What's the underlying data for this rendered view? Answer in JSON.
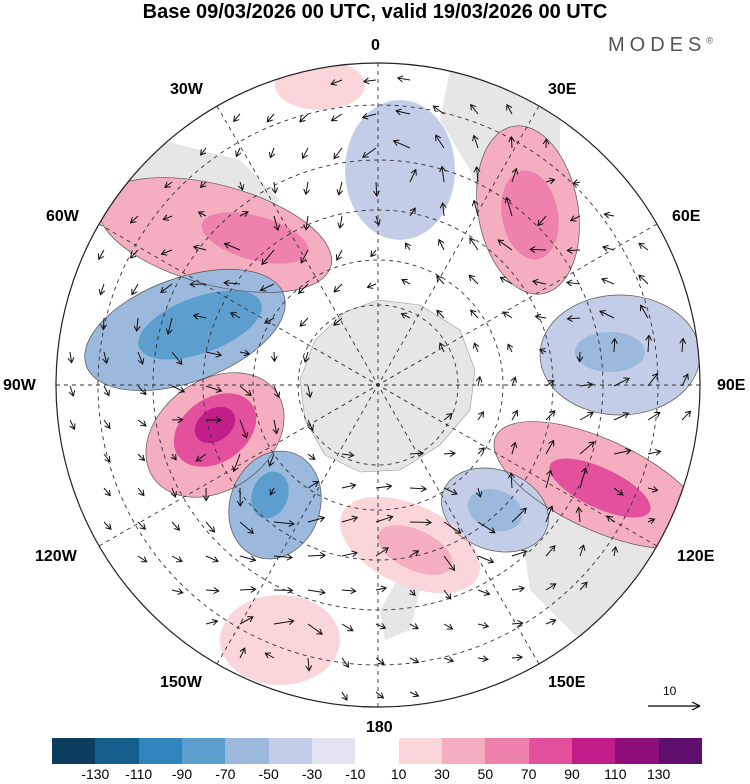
{
  "header": {
    "title": "Base 09/03/2026 00 UTC, valid 19/03/2026 00 UTC",
    "brand": "MODES",
    "brand_mark": "®"
  },
  "map": {
    "projection": "south-polar-stereographic",
    "longitude_labels": {
      "top": "0",
      "bottom": "180",
      "left": "90W",
      "right": "90E",
      "w30": "30W",
      "w60": "60W",
      "w120": "120W",
      "w150": "150W",
      "e30": "30E",
      "e60": "60E",
      "e120": "120E",
      "e150": "150E"
    },
    "reference_vector": "10"
  },
  "colorbar": {
    "colors": [
      "#0b3d5e",
      "#155f8e",
      "#2f86bf",
      "#5c9fce",
      "#9bb8dd",
      "#c3cde8",
      "#e3e3f2",
      "#ffffff",
      "#fad5d9",
      "#f5adc0",
      "#ef82ad",
      "#e3509c",
      "#c21e8a",
      "#8e0f7a",
      "#5e0f6e"
    ],
    "ticks": [
      "-130",
      "-110",
      "-90",
      "-70",
      "-50",
      "-30",
      "-10",
      "10",
      "30",
      "50",
      "70",
      "90",
      "110",
      "130"
    ]
  },
  "anomalies": [
    {
      "name": "anomaly-60w-pink-1",
      "color": "#f5adc0"
    },
    {
      "name": "anomaly-60w-pink-2",
      "color": "#ef82ad"
    },
    {
      "name": "anomaly-90w-blue-1",
      "color": "#9bb8dd"
    },
    {
      "name": "anomaly-90w-blue-2",
      "color": "#5c9fce"
    },
    {
      "name": "anomaly-105w-pink-1",
      "color": "#f5adc0"
    },
    {
      "name": "anomaly-105w-pink-2",
      "color": "#e3509c"
    },
    {
      "name": "anomaly-105w-pink-3",
      "color": "#c21e8a"
    },
    {
      "name": "anomaly-30e-pink-1",
      "color": "#f5adc0"
    },
    {
      "name": "anomaly-30e-pink-2",
      "color": "#ef82ad"
    },
    {
      "name": "anomaly-80e-blue-1",
      "color": "#c3cde8"
    },
    {
      "name": "anomaly-80e-blue-2",
      "color": "#9bb8dd"
    },
    {
      "name": "anomaly-115e-pink-1",
      "color": "#f5adc0"
    },
    {
      "name": "anomaly-115e-pink-2",
      "color": "#e3509c"
    },
    {
      "name": "anomaly-140w-blue-1",
      "color": "#9bb8dd"
    },
    {
      "name": "anomaly-140w-blue-2",
      "color": "#5c9fce"
    },
    {
      "name": "anomaly-150e-blue-1",
      "color": "#c3cde8"
    },
    {
      "name": "anomaly-150e-blue-2",
      "color": "#9bb8dd"
    },
    {
      "name": "anomaly-180-pink-1",
      "color": "#fad5d9"
    },
    {
      "name": "anomaly-180-pink-2",
      "color": "#f5adc0"
    },
    {
      "name": "anomaly-160w-pink-1",
      "color": "#fad5d9"
    },
    {
      "name": "anomaly-0-blue-1",
      "color": "#c3cde8"
    },
    {
      "name": "anomaly-20w-pink-1",
      "color": "#fad5d9"
    }
  ]
}
